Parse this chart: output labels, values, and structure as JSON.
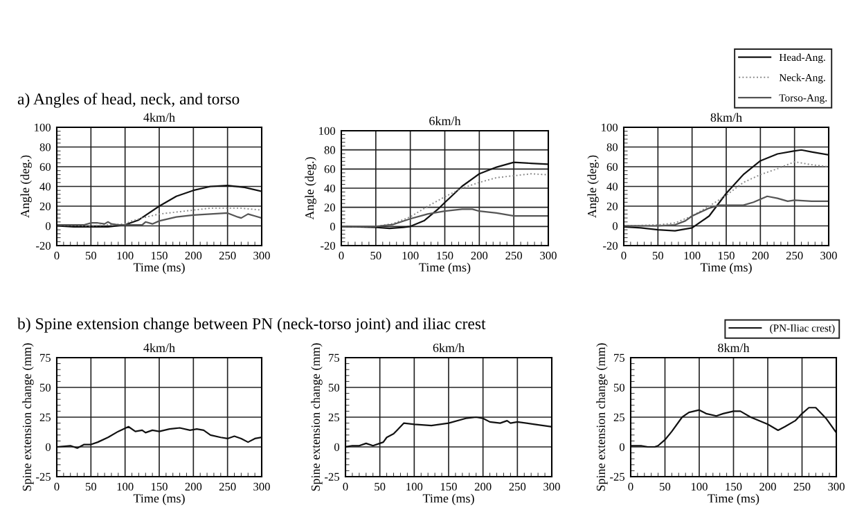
{
  "chart_data": [
    {
      "type": "line",
      "title": "4km/h",
      "xlabel": "Time (ms)",
      "ylabel": "Angle (deg.)",
      "annotations": [
        "a) Angles of head, neck, and torso"
      ],
      "xlim": [
        0,
        300
      ],
      "ylim": [
        -20,
        100
      ],
      "xticks": [
        0,
        50,
        100,
        150,
        200,
        250,
        300
      ],
      "yticks": [
        -20,
        0,
        20,
        40,
        60,
        80,
        100
      ],
      "grid": true,
      "series": [
        {
          "color": "#111111",
          "line_style": "solid",
          "x": [
            0,
            25,
            50,
            75,
            100,
            120,
            150,
            175,
            200,
            225,
            250,
            275,
            300
          ],
          "values": [
            0,
            -1,
            -1,
            -1,
            1,
            6,
            20,
            30,
            36,
            40,
            41,
            39,
            35
          ]
        },
        {
          "color": "#8a8a8a",
          "line_style": "dotted",
          "x": [
            0,
            50,
            100,
            110,
            125,
            150,
            175,
            200,
            225,
            250,
            270,
            300
          ],
          "values": [
            1,
            0,
            2,
            5,
            8,
            12,
            14,
            16,
            18,
            18,
            18,
            16
          ]
        },
        {
          "color": "#555555",
          "line_style": "solid",
          "x": [
            0,
            40,
            50,
            60,
            70,
            75,
            80,
            90,
            100,
            110,
            125,
            130,
            140,
            150,
            175,
            200,
            225,
            250,
            265,
            270,
            280,
            290,
            300
          ],
          "values": [
            1,
            1,
            3,
            3,
            2,
            4,
            2,
            1,
            1,
            1,
            1,
            4,
            2,
            5,
            9,
            11,
            12,
            13,
            9,
            8,
            12,
            10,
            8
          ]
        }
      ]
    },
    {
      "type": "line",
      "title": "6km/h",
      "xlabel": "Time (ms)",
      "ylabel": "Angle (deg.)",
      "xlim": [
        0,
        300
      ],
      "ylim": [
        -20,
        100
      ],
      "xticks": [
        0,
        50,
        100,
        150,
        200,
        250,
        300
      ],
      "yticks": [
        -20,
        0,
        20,
        40,
        60,
        80,
        100
      ],
      "grid": true,
      "series": [
        {
          "color": "#111111",
          "line_style": "solid",
          "x": [
            0,
            50,
            70,
            90,
            100,
            120,
            140,
            150,
            175,
            200,
            225,
            250,
            275,
            300
          ],
          "values": [
            0,
            -1,
            -2,
            -1,
            0,
            6,
            18,
            25,
            42,
            55,
            62,
            67,
            66,
            65
          ]
        },
        {
          "color": "#8a8a8a",
          "line_style": "dotted",
          "x": [
            0,
            50,
            75,
            100,
            125,
            150,
            175,
            200,
            225,
            250,
            275,
            300
          ],
          "values": [
            0,
            0,
            3,
            10,
            21,
            31,
            40,
            46,
            51,
            53,
            55,
            54
          ]
        },
        {
          "color": "#555555",
          "line_style": "solid",
          "x": [
            0,
            50,
            75,
            100,
            125,
            150,
            175,
            190,
            200,
            225,
            250,
            275,
            300
          ],
          "values": [
            0,
            0,
            2,
            8,
            13,
            16,
            18,
            18,
            16,
            14,
            11,
            11,
            11
          ]
        }
      ]
    },
    {
      "type": "line",
      "title": "8km/h",
      "xlabel": "Time (ms)",
      "ylabel": "Angle (deg.)",
      "legend": "top right",
      "xlim": [
        0,
        300
      ],
      "ylim": [
        -20,
        100
      ],
      "xticks": [
        0,
        50,
        100,
        150,
        200,
        250,
        300
      ],
      "yticks": [
        -20,
        0,
        20,
        40,
        60,
        80,
        100
      ],
      "grid": true,
      "series": [
        {
          "name": "Head-Ang.",
          "color": "#111111",
          "line_style": "solid",
          "x": [
            0,
            25,
            50,
            75,
            100,
            125,
            150,
            175,
            200,
            225,
            250,
            260,
            275,
            300
          ],
          "values": [
            -1,
            -2,
            -4,
            -5,
            -2,
            10,
            33,
            52,
            66,
            73,
            76,
            77,
            75,
            72
          ]
        },
        {
          "name": "Neck-Ang.",
          "color": "#8a8a8a",
          "line_style": "dotted",
          "x": [
            0,
            50,
            75,
            100,
            125,
            150,
            175,
            200,
            225,
            250,
            275,
            300
          ],
          "values": [
            0,
            1,
            3,
            10,
            20,
            31,
            44,
            52,
            58,
            65,
            62,
            60
          ]
        },
        {
          "name": "Torso-Ang.",
          "color": "#555555",
          "line_style": "solid",
          "x": [
            0,
            50,
            75,
            90,
            100,
            125,
            140,
            150,
            175,
            190,
            210,
            225,
            240,
            250,
            275,
            300
          ],
          "values": [
            0,
            0,
            1,
            5,
            10,
            18,
            21,
            21,
            21,
            24,
            30,
            28,
            25,
            26,
            25,
            25
          ]
        }
      ]
    },
    {
      "type": "line",
      "title": "4km/h",
      "xlabel": "Time (ms)",
      "ylabel": "Spine extension change (mm)",
      "annotations": [
        "b) Spine extension change between PN (neck-torso joint) and iliac crest"
      ],
      "xlim": [
        0,
        300
      ],
      "ylim": [
        -25,
        75
      ],
      "xticks": [
        0,
        50,
        100,
        150,
        200,
        250,
        300
      ],
      "yticks": [
        -25,
        0,
        25,
        50,
        75
      ],
      "grid": true,
      "series": [
        {
          "color": "#111111",
          "line_style": "solid",
          "x": [
            0,
            20,
            30,
            40,
            50,
            60,
            75,
            90,
            105,
            115,
            125,
            130,
            140,
            150,
            165,
            180,
            195,
            205,
            215,
            225,
            240,
            250,
            260,
            270,
            280,
            290,
            300
          ],
          "values": [
            0,
            1,
            -1,
            2,
            2,
            4,
            8,
            13,
            17,
            13,
            14,
            12,
            14,
            13,
            15,
            16,
            14,
            15,
            14,
            10,
            8,
            7,
            9,
            7,
            4,
            7,
            8
          ]
        }
      ]
    },
    {
      "type": "line",
      "title": "6km/h",
      "xlabel": "Time (ms)",
      "ylabel": "Spine extension change (mm)",
      "xlim": [
        0,
        300
      ],
      "ylim": [
        -25,
        75
      ],
      "xticks": [
        0,
        50,
        100,
        150,
        200,
        250,
        300
      ],
      "yticks": [
        -25,
        0,
        25,
        50,
        75
      ],
      "grid": true,
      "series": [
        {
          "color": "#111111",
          "line_style": "solid",
          "x": [
            0,
            10,
            20,
            30,
            40,
            50,
            55,
            60,
            70,
            75,
            85,
            100,
            125,
            150,
            175,
            190,
            200,
            210,
            225,
            235,
            240,
            250,
            275,
            300
          ],
          "values": [
            0,
            1,
            1,
            3,
            1,
            3,
            4,
            8,
            11,
            14,
            20,
            19,
            18,
            20,
            24,
            25,
            24,
            21,
            20,
            22,
            20,
            21,
            19,
            17
          ]
        }
      ]
    },
    {
      "type": "line",
      "title": "8km/h",
      "xlabel": "Time (ms)",
      "ylabel": "Spine extension change (mm)",
      "legend": "top right",
      "xlim": [
        0,
        300
      ],
      "ylim": [
        -25,
        75
      ],
      "xticks": [
        0,
        50,
        100,
        150,
        200,
        250,
        300
      ],
      "yticks": [
        -25,
        0,
        25,
        50,
        75
      ],
      "grid": true,
      "series": [
        {
          "name": "(PN-Iliac crest)",
          "color": "#111111",
          "line_style": "solid",
          "x": [
            0,
            15,
            25,
            35,
            40,
            50,
            60,
            75,
            85,
            100,
            110,
            125,
            135,
            150,
            160,
            175,
            200,
            215,
            225,
            240,
            250,
            260,
            270,
            285,
            300
          ],
          "values": [
            1,
            1,
            0,
            0,
            1,
            6,
            13,
            25,
            29,
            31,
            28,
            26,
            28,
            30,
            30,
            25,
            19,
            14,
            17,
            22,
            28,
            33,
            33,
            24,
            12
          ]
        }
      ]
    }
  ]
}
